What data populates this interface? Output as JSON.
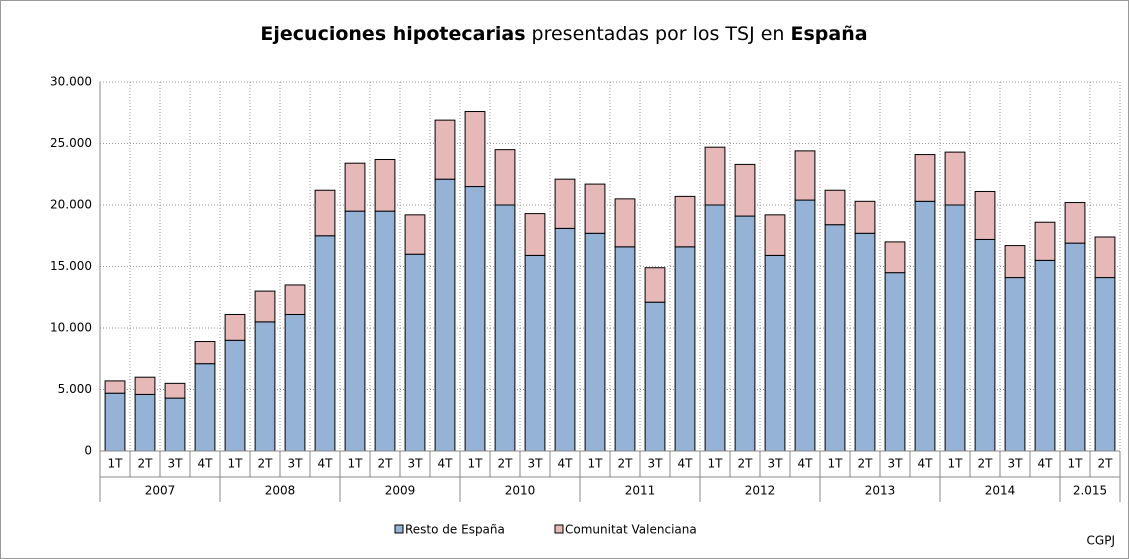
{
  "chart_data": {
    "type": "stacked_bar",
    "title": [
      {
        "text": "Ejecuciones hipotecarias",
        "bold": true
      },
      {
        "text": " presentadas por los TSJ en ",
        "bold": false
      },
      {
        "text": "España",
        "bold": true
      }
    ],
    "categories": [
      "1T",
      "2T",
      "3T",
      "4T",
      "1T",
      "2T",
      "3T",
      "4T",
      "1T",
      "2T",
      "3T",
      "4T",
      "1T",
      "2T",
      "3T",
      "4T",
      "1T",
      "2T",
      "3T",
      "4T",
      "1T",
      "2T",
      "3T",
      "4T",
      "1T",
      "2T",
      "3T",
      "4T",
      "1T",
      "2T",
      "3T",
      "4T",
      "1T",
      "2T"
    ],
    "groups": [
      {
        "label": "2007",
        "span": 4
      },
      {
        "label": "2008",
        "span": 4
      },
      {
        "label": "2009",
        "span": 4
      },
      {
        "label": "2010",
        "span": 4
      },
      {
        "label": "2011",
        "span": 4
      },
      {
        "label": "2012",
        "span": 4
      },
      {
        "label": "2013",
        "span": 4
      },
      {
        "label": "2014",
        "span": 4
      },
      {
        "label": "2.015",
        "span": 2
      }
    ],
    "series": [
      {
        "name": "Resto de España",
        "color": "#95b3d7",
        "values": [
          4700,
          4600,
          4300,
          7100,
          9000,
          10500,
          11100,
          17500,
          19500,
          19500,
          16000,
          22100,
          21500,
          20000,
          15900,
          18100,
          17700,
          16600,
          12100,
          16600,
          20000,
          19100,
          15900,
          20400,
          18400,
          17700,
          14500,
          20300,
          20000,
          17200,
          14100,
          15500,
          16900,
          14100
        ]
      },
      {
        "name": "Comunitat Valenciana",
        "color": "#e6b9b8",
        "values": [
          1000,
          1400,
          1200,
          1800,
          2100,
          2500,
          2400,
          3700,
          3900,
          4200,
          3200,
          4800,
          6100,
          4500,
          3400,
          4000,
          4000,
          3900,
          2800,
          4100,
          4700,
          4200,
          3300,
          4000,
          2800,
          2600,
          2500,
          3800,
          4300,
          3900,
          2600,
          3100,
          3300,
          3300
        ]
      }
    ],
    "ylim": [
      0,
      30000
    ],
    "yticks": [
      0,
      {
        "value": 5000,
        "label": "5.000"
      },
      {
        "value": 10000,
        "label": "10.000"
      },
      {
        "value": 15000,
        "label": "15.000"
      },
      {
        "value": 20000,
        "label": "20.000"
      },
      {
        "value": 25000,
        "label": "25.000"
      },
      {
        "value": 30000,
        "label": "30.000"
      }
    ],
    "grid": true,
    "legend": "bottom",
    "source": "CGPJ"
  }
}
